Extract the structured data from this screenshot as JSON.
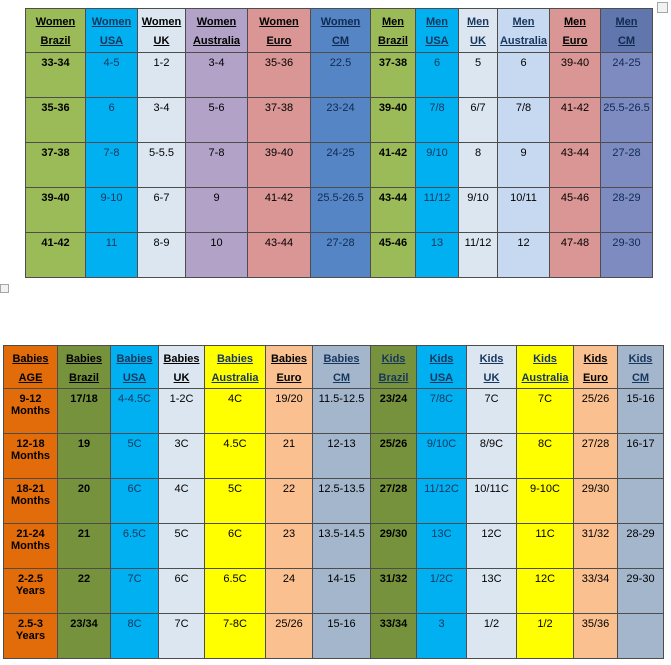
{
  "page": {
    "background": "#ffffff",
    "grid_border": "#4d4d4d"
  },
  "chart_data": [
    {
      "type": "table",
      "name": "women-men-shoe-size-conversion",
      "columns": [
        {
          "l1": "Women",
          "l2": "Brazil",
          "hbg": "#9BBB59",
          "dbg": "#9BBB59",
          "hc": "#000000",
          "dc": "#000000",
          "bold": true
        },
        {
          "l1": "Women",
          "l2": "USA",
          "hbg": "#00B0F0",
          "dbg": "#00B0F0",
          "hc": "#17365D",
          "dc": "#17365D",
          "bold": false
        },
        {
          "l1": "Women",
          "l2": "UK",
          "hbg": "#DCE6F1",
          "dbg": "#DCE6F1",
          "hc": "#000000",
          "dc": "#000000",
          "bold": false
        },
        {
          "l1": "Women",
          "l2": "Australia",
          "hbg": "#B2A2C7",
          "dbg": "#B2A2C7",
          "hc": "#000000",
          "dc": "#000000",
          "bold": false
        },
        {
          "l1": "Women",
          "l2": "Euro",
          "hbg": "#D99694",
          "dbg": "#D99694",
          "hc": "#000000",
          "dc": "#000000",
          "bold": false
        },
        {
          "l1": "Women",
          "l2": "CM",
          "hbg": "#5585C4",
          "dbg": "#5585C4",
          "hc": "#0F2B52",
          "dc": "#0F2B52",
          "bold": false
        },
        {
          "l1": "Men",
          "l2": "Brazil",
          "hbg": "#9BBB59",
          "dbg": "#9BBB59",
          "hc": "#000000",
          "dc": "#000000",
          "bold": true
        },
        {
          "l1": "Men",
          "l2": "USA",
          "hbg": "#00B0F0",
          "dbg": "#00B0F0",
          "hc": "#17365D",
          "dc": "#17365D",
          "bold": false
        },
        {
          "l1": "Men",
          "l2": "UK",
          "hbg": "#DCE6F1",
          "dbg": "#DCE6F1",
          "hc": "#17365D",
          "dc": "#000000",
          "bold": false
        },
        {
          "l1": "Men",
          "l2": "Australia",
          "hbg": "#C6D9F1",
          "dbg": "#C6D9F1",
          "hc": "#17365D",
          "dc": "#000000",
          "bold": false
        },
        {
          "l1": "Men",
          "l2": "Euro",
          "hbg": "#D99694",
          "dbg": "#D99694",
          "hc": "#000000",
          "dc": "#000000",
          "bold": false
        },
        {
          "l1": "Men",
          "l2": "CM",
          "hbg": "#6276AE",
          "dbg": "#7D8BC0",
          "hc": "#0F2B52",
          "dc": "#0F2B52",
          "bold": false
        }
      ],
      "rows": [
        [
          "33-34",
          "4-5",
          "1-2",
          "3-4",
          "35-36",
          "22.5",
          "37-38",
          "6",
          "5",
          "6",
          "39-40",
          "24-25"
        ],
        [
          "35-36",
          "6",
          "3-4",
          "5-6",
          "37-38",
          "23-24",
          "39-40",
          "7/8",
          "6/7",
          "7/8",
          "41-42",
          "25.5-26.5"
        ],
        [
          "37-38",
          "7-8",
          "5-5.5",
          "7-8",
          "39-40",
          "24-25",
          "41-42",
          "9/10",
          "8",
          "9",
          "43-44",
          "27-28"
        ],
        [
          "39-40",
          "9-10",
          "6-7",
          "9",
          "41-42",
          "25.5-26.5",
          "43-44",
          "11/12",
          "9/10",
          "10/11",
          "45-46",
          "28-29"
        ],
        [
          "41-42",
          "11",
          "8-9",
          "10",
          "43-44",
          "27-28",
          "45-46",
          "13",
          "11/12",
          "12",
          "47-48",
          "29-30"
        ]
      ]
    },
    {
      "type": "table",
      "name": "babies-kids-shoe-size-conversion",
      "columns": [
        {
          "l1": "Babies",
          "l2": "AGE",
          "hbg": "#E26B0A",
          "dbg": "#E26B0A",
          "hc": "#000000",
          "dc": "#000000",
          "bold": true
        },
        {
          "l1": "Babies",
          "l2": "Brazil",
          "hbg": "#76923C",
          "dbg": "#76923C",
          "hc": "#000000",
          "dc": "#000000",
          "bold": true
        },
        {
          "l1": "Babies",
          "l2": "USA",
          "hbg": "#00B0F0",
          "dbg": "#00B0F0",
          "hc": "#17365D",
          "dc": "#17365D",
          "bold": false
        },
        {
          "l1": "Babies",
          "l2": "UK",
          "hbg": "#DCE6F1",
          "dbg": "#DCE6F1",
          "hc": "#000000",
          "dc": "#000000",
          "bold": false
        },
        {
          "l1": "Babies",
          "l2": "Australia",
          "hbg": "#FFFF00",
          "dbg": "#FFFF00",
          "hc": "#17365D",
          "dc": "#000000",
          "bold": false
        },
        {
          "l1": "Babies",
          "l2": "Euro",
          "hbg": "#FAC090",
          "dbg": "#FAC090",
          "hc": "#000000",
          "dc": "#000000",
          "bold": false
        },
        {
          "l1": "Babies",
          "l2": "CM",
          "hbg": "#A3B6CC",
          "dbg": "#A3B6CC",
          "hc": "#17365D",
          "dc": "#000000",
          "bold": false
        },
        {
          "l1": "Kids",
          "l2": "Brazil",
          "hbg": "#76923C",
          "dbg": "#76923C",
          "hc": "#17365D",
          "dc": "#000000",
          "bold": true
        },
        {
          "l1": "Kids",
          "l2": "USA",
          "hbg": "#00B0F0",
          "dbg": "#00B0F0",
          "hc": "#17365D",
          "dc": "#17365D",
          "bold": false
        },
        {
          "l1": "Kids",
          "l2": "UK",
          "hbg": "#DCE6F1",
          "dbg": "#DCE6F1",
          "hc": "#17365D",
          "dc": "#000000",
          "bold": false
        },
        {
          "l1": "Kids",
          "l2": "Australia",
          "hbg": "#FFFF00",
          "dbg": "#FFFF00",
          "hc": "#17365D",
          "dc": "#000000",
          "bold": false
        },
        {
          "l1": "Kids",
          "l2": "Euro",
          "hbg": "#FAC090",
          "dbg": "#FAC090",
          "hc": "#000000",
          "dc": "#000000",
          "bold": false
        },
        {
          "l1": "Kids",
          "l2": "CM",
          "hbg": "#A3B6CC",
          "dbg": "#A3B6CC",
          "hc": "#17365D",
          "dc": "#000000",
          "bold": false
        }
      ],
      "rows": [
        [
          "9-12 Months",
          "17/18",
          "4-4.5C",
          "1-2C",
          "4C",
          "19/20",
          "11.5-12.5",
          "23/24",
          "7/8C",
          "7C",
          "7C",
          "25/26",
          "15-16"
        ],
        [
          "12-18 Months",
          "19",
          "5C",
          "3C",
          "4.5C",
          "21",
          "12-13",
          "25/26",
          "9/10C",
          "8/9C",
          "8C",
          "27/28",
          "16-17"
        ],
        [
          "18-21 Months",
          "20",
          "6C",
          "4C",
          "5C",
          "22",
          "12.5-13.5",
          "27/28",
          "11/12C",
          "10/11C",
          "9-10C",
          "29/30",
          ""
        ],
        [
          "21-24 Months",
          "21",
          "6.5C",
          "5C",
          "6C",
          "23",
          "13.5-14.5",
          "29/30",
          "13C",
          "12C",
          "11C",
          "31/32",
          "28-29"
        ],
        [
          "2-2.5 Years",
          "22",
          "7C",
          "6C",
          "6.5C",
          "24",
          "14-15",
          "31/32",
          "1/2C",
          "13C",
          "12C",
          "33/34",
          "29-30"
        ],
        [
          "2.5-3 Years",
          "23/34",
          "8C",
          "7C",
          "7-8C",
          "25/26",
          "15-16",
          "33/34",
          "3",
          "1/2",
          "1/2",
          "35/36",
          ""
        ]
      ]
    }
  ]
}
